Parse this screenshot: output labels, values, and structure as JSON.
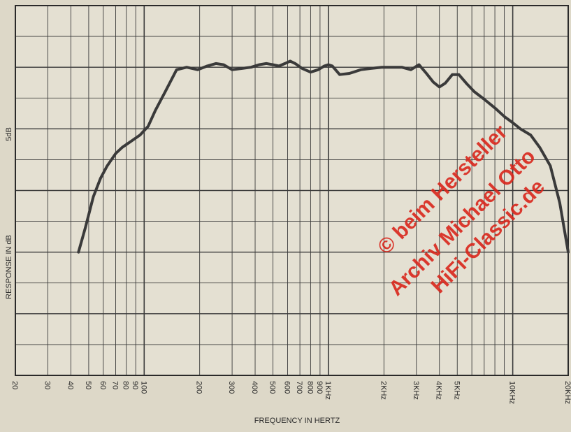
{
  "chart_data": {
    "type": "line",
    "title": "",
    "xlabel": "FREQUENCY IN HERTZ",
    "ylabel": "RESPONSE IN dB",
    "scale_label": "5dB",
    "x_scale": "log",
    "xlim": [
      20,
      20000
    ],
    "ylim": [
      -25,
      5
    ],
    "grid": true,
    "legend": "none",
    "x_ticks": [
      {
        "value": 20,
        "label": "20"
      },
      {
        "value": 30,
        "label": "30"
      },
      {
        "value": 40,
        "label": "40"
      },
      {
        "value": 50,
        "label": "50"
      },
      {
        "value": 60,
        "label": "60"
      },
      {
        "value": 70,
        "label": "70"
      },
      {
        "value": 80,
        "label": "80"
      },
      {
        "value": 90,
        "label": "90"
      },
      {
        "value": 100,
        "label": "100"
      },
      {
        "value": 200,
        "label": "200"
      },
      {
        "value": 300,
        "label": "300"
      },
      {
        "value": 400,
        "label": "400"
      },
      {
        "value": 500,
        "label": "500"
      },
      {
        "value": 600,
        "label": "600"
      },
      {
        "value": 700,
        "label": "700"
      },
      {
        "value": 800,
        "label": "800"
      },
      {
        "value": 900,
        "label": "900"
      },
      {
        "value": 1000,
        "label": "1KHz"
      },
      {
        "value": 2000,
        "label": "2KHz"
      },
      {
        "value": 3000,
        "label": "3KHz"
      },
      {
        "value": 4000,
        "label": "4KHz"
      },
      {
        "value": 5000,
        "label": "5KHz"
      },
      {
        "value": 10000,
        "label": "10KHz"
      },
      {
        "value": 20000,
        "label": "20KHz"
      }
    ],
    "y_major_ticks": [
      5,
      0,
      -5,
      -10,
      -15,
      -20,
      -25
    ],
    "series": [
      {
        "color": "#3a3a3a",
        "x": [
          44,
          48,
          53,
          58,
          63,
          70,
          76,
          85,
          95,
          105,
          115,
          130,
          150,
          170,
          195,
          220,
          245,
          270,
          300,
          340,
          380,
          420,
          460,
          500,
          540,
          580,
          620,
          660,
          720,
          800,
          880,
          950,
          1000,
          1050,
          1150,
          1300,
          1500,
          1700,
          1950,
          2200,
          2500,
          2800,
          3100,
          3400,
          3700,
          4000,
          4300,
          4700,
          5100,
          5600,
          6200,
          7000,
          8000,
          9000,
          10000,
          11000,
          12500,
          14000,
          16000,
          18000,
          20000
        ],
        "y": [
          -15.0,
          -13.0,
          -10.5,
          -9.0,
          -8.0,
          -7.0,
          -6.5,
          -6.0,
          -5.5,
          -4.8,
          -3.5,
          -2.0,
          -0.2,
          0.0,
          -0.2,
          0.1,
          0.3,
          0.2,
          -0.2,
          -0.1,
          0.0,
          0.2,
          0.3,
          0.2,
          0.1,
          0.3,
          0.5,
          0.3,
          -0.1,
          -0.4,
          -0.2,
          0.1,
          0.2,
          0.1,
          -0.6,
          -0.5,
          -0.2,
          -0.1,
          0.0,
          0.0,
          0.0,
          -0.2,
          0.2,
          -0.5,
          -1.2,
          -1.6,
          -1.3,
          -0.6,
          -0.6,
          -1.3,
          -2.0,
          -2.6,
          -3.3,
          -4.0,
          -4.5,
          -5.0,
          -5.5,
          -6.5,
          -8.0,
          -11.0,
          -15.0
        ]
      }
    ]
  },
  "watermark": [
    "© beim Hersteller",
    "Archiv Michael Otto",
    "HiFi-Classic.de"
  ]
}
